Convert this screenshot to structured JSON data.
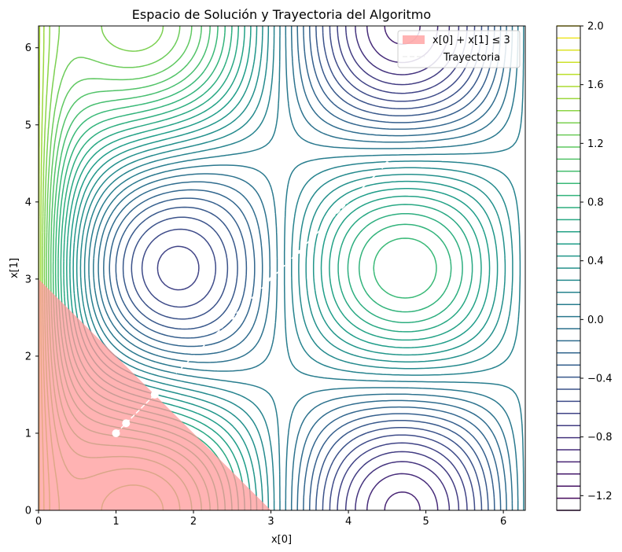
{
  "chart_data": {
    "type": "contour",
    "title": "Espacio de Solución y Trayectoria del Algoritmo",
    "xlabel": "x[0]",
    "ylabel": "x[1]",
    "xlim": [
      0,
      6.283
    ],
    "ylim": [
      0,
      6.283
    ],
    "xticks": [
      "0",
      "1",
      "2",
      "3",
      "4",
      "5",
      "6"
    ],
    "yticks": [
      "0",
      "1",
      "2",
      "3",
      "4",
      "5",
      "6"
    ],
    "colorbar": {
      "vmin": -1.3,
      "vmax": 2.0,
      "ticks": [
        "2.0",
        "1.6",
        "1.2",
        "0.8",
        "0.4",
        "0.0",
        "−0.4",
        "−0.8",
        "−1.2"
      ],
      "colormap": "viridis"
    },
    "feasible_region": {
      "constraint": "x[0] + x[1] ≤ 3",
      "color": "#ff9999",
      "vertices": [
        [
          0,
          0
        ],
        [
          3,
          0
        ],
        [
          0,
          3
        ]
      ]
    },
    "trajectory": {
      "name": "Trayectoria",
      "color": "#ffffff",
      "x": [
        1.0,
        1.13,
        1.5,
        2.5,
        3.0,
        3.35,
        3.75,
        4.5
      ],
      "y": [
        1.0,
        1.13,
        1.5,
        2.5,
        3.0,
        3.35,
        3.75,
        4.5
      ]
    },
    "legend": {
      "position": "top-right",
      "entries": [
        "x[0] + x[1] ≤ 3",
        "Trayectoria"
      ]
    },
    "grid": false
  }
}
